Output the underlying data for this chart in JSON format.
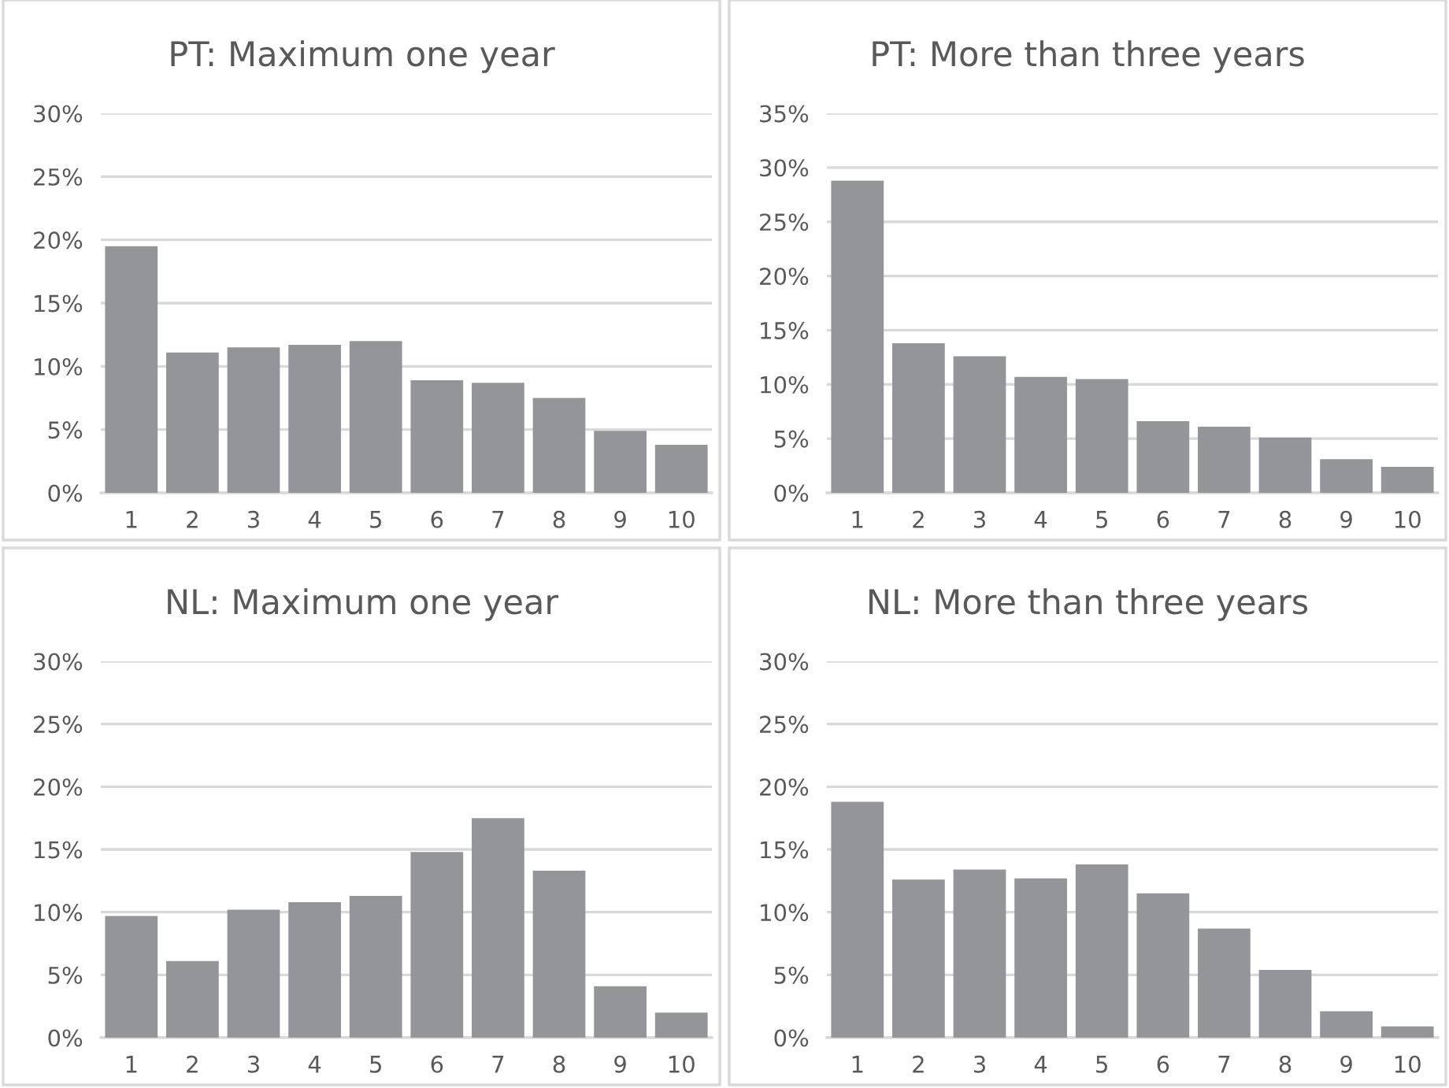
{
  "chart_data": [
    {
      "type": "bar",
      "title": "PT: Maximum one year",
      "categories": [
        "1",
        "2",
        "3",
        "4",
        "5",
        "6",
        "7",
        "8",
        "9",
        "10"
      ],
      "values": [
        19.5,
        11.1,
        11.5,
        11.7,
        12.0,
        8.9,
        8.7,
        7.5,
        4.9,
        3.8
      ],
      "color": "#939598",
      "ylim": [
        0,
        30
      ],
      "yticks": [
        {
          "value": 0,
          "label": "0%"
        },
        {
          "value": 5,
          "label": "5%"
        },
        {
          "value": 10,
          "label": "10%"
        },
        {
          "value": 15,
          "label": "15%"
        },
        {
          "value": 20,
          "label": "20%"
        },
        {
          "value": 25,
          "label": "25%"
        },
        {
          "value": 30,
          "label": "30%"
        }
      ],
      "grid": "y"
    },
    {
      "type": "bar",
      "title": "PT: More than three years",
      "categories": [
        "1",
        "2",
        "3",
        "4",
        "5",
        "6",
        "7",
        "8",
        "9",
        "10"
      ],
      "values": [
        28.8,
        13.8,
        12.6,
        10.7,
        10.5,
        6.6,
        6.1,
        5.1,
        3.1,
        2.4
      ],
      "color": "#939598",
      "ylim": [
        0,
        35
      ],
      "yticks": [
        {
          "value": 0,
          "label": "0%"
        },
        {
          "value": 5,
          "label": "5%"
        },
        {
          "value": 10,
          "label": "10%"
        },
        {
          "value": 15,
          "label": "15%"
        },
        {
          "value": 20,
          "label": "20%"
        },
        {
          "value": 25,
          "label": "25%"
        },
        {
          "value": 30,
          "label": "30%"
        },
        {
          "value": 35,
          "label": "35%"
        }
      ],
      "grid": "y"
    },
    {
      "type": "bar",
      "title": "NL: Maximum one year",
      "categories": [
        "1",
        "2",
        "3",
        "4",
        "5",
        "6",
        "7",
        "8",
        "9",
        "10"
      ],
      "values": [
        9.7,
        6.1,
        10.2,
        10.8,
        11.3,
        14.8,
        17.5,
        13.3,
        4.1,
        2.0
      ],
      "color": "#939598",
      "ylim": [
        0,
        30
      ],
      "yticks": [
        {
          "value": 0,
          "label": "0%"
        },
        {
          "value": 5,
          "label": "5%"
        },
        {
          "value": 10,
          "label": "10%"
        },
        {
          "value": 15,
          "label": "15%"
        },
        {
          "value": 20,
          "label": "20%"
        },
        {
          "value": 25,
          "label": "25%"
        },
        {
          "value": 30,
          "label": "30%"
        }
      ],
      "grid": "y"
    },
    {
      "type": "bar",
      "title": "NL: More than three years",
      "categories": [
        "1",
        "2",
        "3",
        "4",
        "5",
        "6",
        "7",
        "8",
        "9",
        "10"
      ],
      "values": [
        18.8,
        12.6,
        13.4,
        12.7,
        13.8,
        11.5,
        8.7,
        5.4,
        2.1,
        0.9
      ],
      "color": "#939598",
      "ylim": [
        0,
        30
      ],
      "yticks": [
        {
          "value": 0,
          "label": "0%"
        },
        {
          "value": 5,
          "label": "5%"
        },
        {
          "value": 10,
          "label": "10%"
        },
        {
          "value": 15,
          "label": "15%"
        },
        {
          "value": 20,
          "label": "20%"
        },
        {
          "value": 25,
          "label": "25%"
        },
        {
          "value": 30,
          "label": "30%"
        }
      ],
      "grid": "y"
    }
  ]
}
